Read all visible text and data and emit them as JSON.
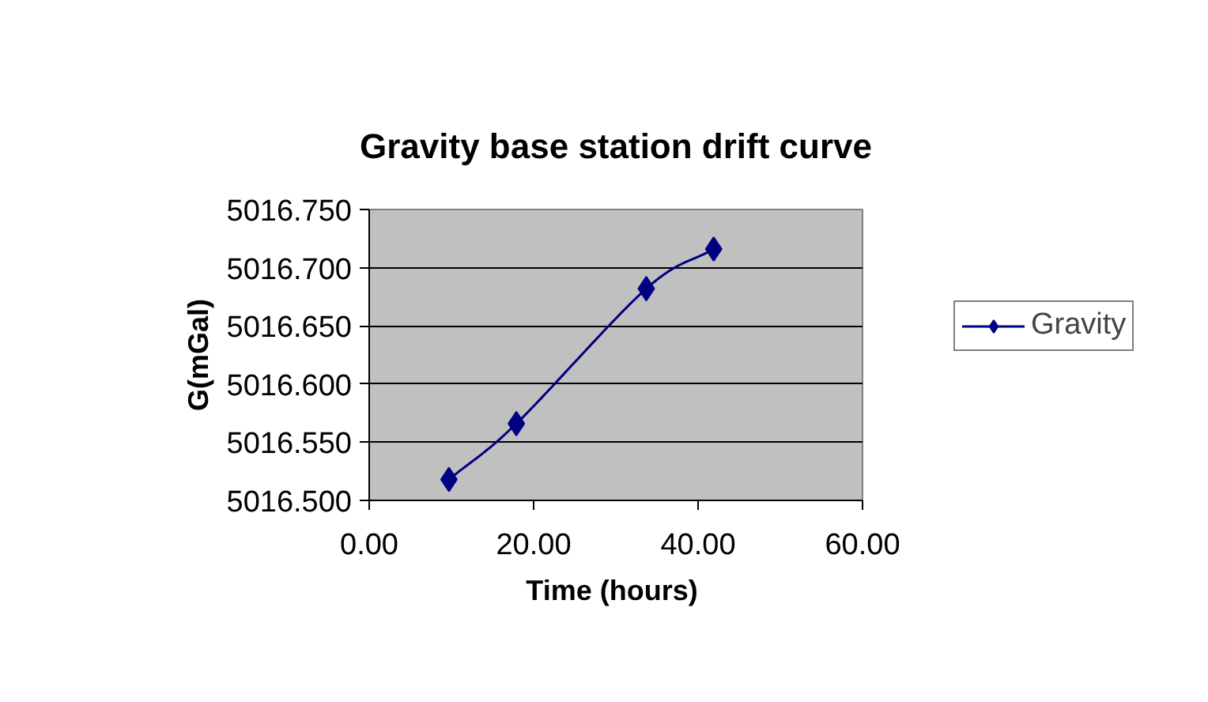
{
  "chart_data": {
    "type": "line",
    "title": "Gravity base station drift curve",
    "xlabel": "Time  (hours)",
    "ylabel": "G(mGal)",
    "x": [
      9.7,
      17.9,
      33.7,
      41.9
    ],
    "series": [
      {
        "name": "Gravity",
        "color": "#000080",
        "values": [
          5016.518,
          5016.566,
          5016.682,
          5016.716
        ]
      }
    ],
    "xlim": [
      0,
      60
    ],
    "xticks": [
      {
        "value": 0,
        "label": "0.00"
      },
      {
        "value": 20,
        "label": "20.00"
      },
      {
        "value": 40,
        "label": "40.00"
      },
      {
        "value": 60,
        "label": "60.00"
      }
    ],
    "ylim": [
      5016.5,
      5016.75
    ],
    "yticks": [
      {
        "value": 5016.5,
        "label": "5016.500"
      },
      {
        "value": 5016.55,
        "label": "5016.550"
      },
      {
        "value": 5016.6,
        "label": "5016.600"
      },
      {
        "value": 5016.65,
        "label": "5016.650"
      },
      {
        "value": 5016.7,
        "label": "5016.700"
      },
      {
        "value": 5016.75,
        "label": "5016.750"
      }
    ],
    "grid": "y",
    "legend": "right",
    "marker": "diamond",
    "line_style": "solid"
  }
}
